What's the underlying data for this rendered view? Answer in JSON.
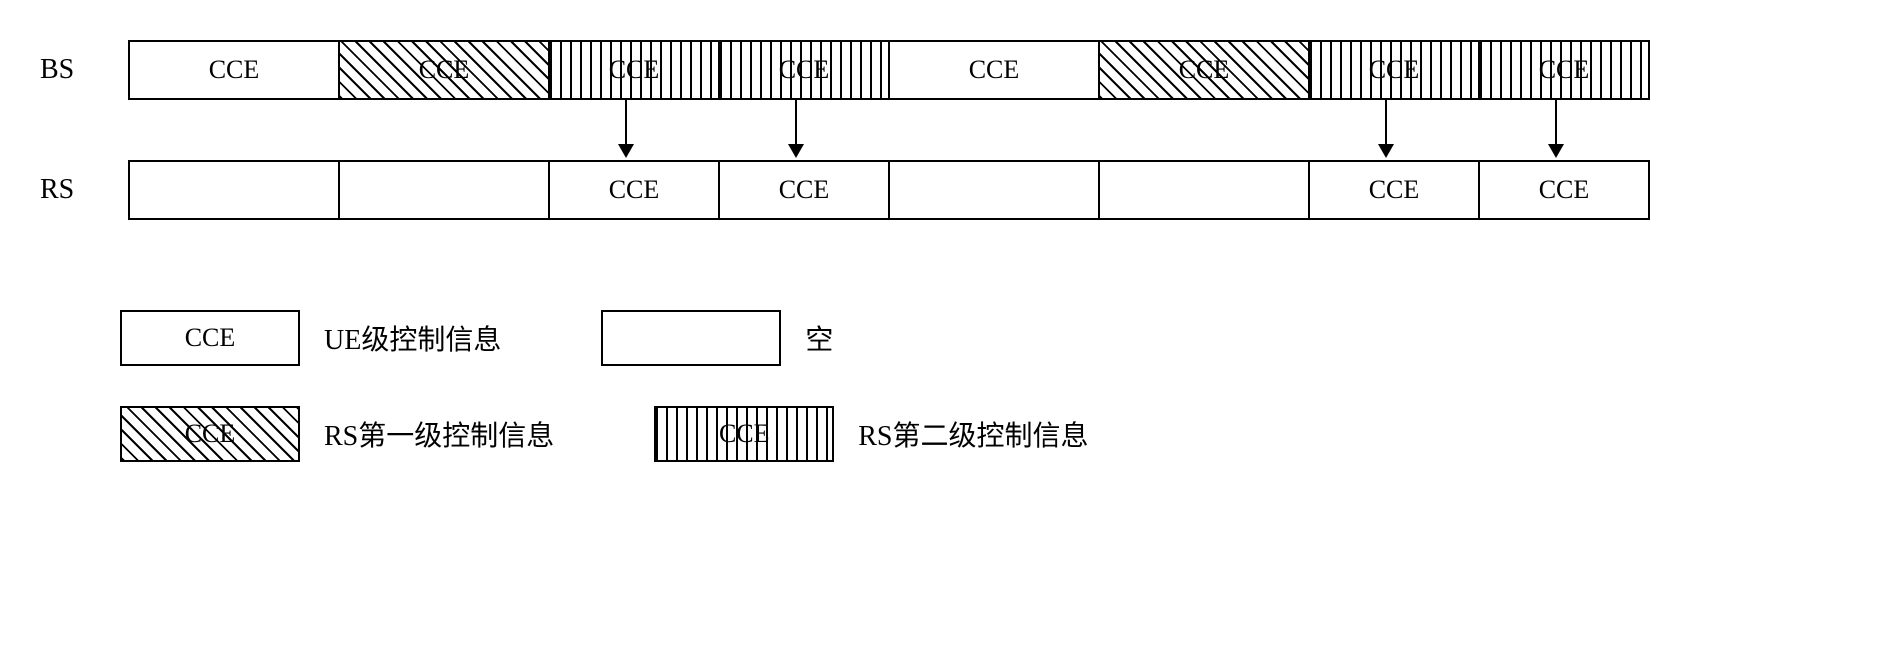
{
  "labels": {
    "bs": "BS",
    "rs": "RS"
  },
  "cce_text": "CCE",
  "cell_widths": {
    "wide": 210,
    "narrow": 170
  },
  "colors": {
    "border": "#000000",
    "background": "#ffffff",
    "pattern": "#000000"
  },
  "bs_cells": [
    {
      "w": "wide",
      "pattern": "none",
      "label": true
    },
    {
      "w": "wide",
      "pattern": "diag",
      "label": true
    },
    {
      "w": "narrow",
      "pattern": "vert",
      "label": true
    },
    {
      "w": "narrow",
      "pattern": "vert",
      "label": true
    },
    {
      "w": "wide",
      "pattern": "none",
      "label": true
    },
    {
      "w": "wide",
      "pattern": "diag",
      "label": true
    },
    {
      "w": "narrow",
      "pattern": "vert",
      "label": true
    },
    {
      "w": "narrow",
      "pattern": "vert",
      "label": true
    }
  ],
  "rs_cells": [
    {
      "w": "wide",
      "pattern": "none",
      "label": false
    },
    {
      "w": "wide",
      "pattern": "none",
      "label": false
    },
    {
      "w": "narrow",
      "pattern": "none",
      "label": true
    },
    {
      "w": "narrow",
      "pattern": "none",
      "label": true
    },
    {
      "w": "wide",
      "pattern": "none",
      "label": false
    },
    {
      "w": "wide",
      "pattern": "none",
      "label": false
    },
    {
      "w": "narrow",
      "pattern": "none",
      "label": true
    },
    {
      "w": "narrow",
      "pattern": "none",
      "label": true
    }
  ],
  "arrows_at_cols": [
    2,
    3,
    6,
    7
  ],
  "legend": {
    "row1": [
      {
        "swatch_w": 180,
        "pattern": "none",
        "swatch_label": "CCE",
        "text": "UE级控制信息"
      },
      {
        "swatch_w": 180,
        "pattern": "none",
        "swatch_label": "",
        "text": "空"
      }
    ],
    "row2": [
      {
        "swatch_w": 180,
        "pattern": "diag",
        "swatch_label": "CCE",
        "text": "RS第一级控制信息"
      },
      {
        "swatch_w": 180,
        "pattern": "vert",
        "swatch_label": "CCE",
        "text": "RS第二级控制信息"
      }
    ]
  }
}
